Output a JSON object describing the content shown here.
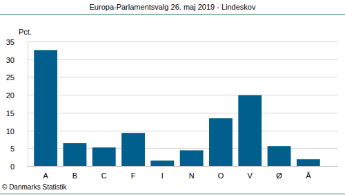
{
  "chart_data": {
    "type": "bar",
    "title": "Europa-Parlamentsvalg 26. maj 2019 - Lindeskov",
    "y_label": "Pct.",
    "source": "© Danmarks Statistik",
    "categories": [
      "A",
      "B",
      "C",
      "F",
      "I",
      "N",
      "O",
      "V",
      "Ø",
      "Å"
    ],
    "values": [
      32.6,
      6.4,
      5.2,
      9.3,
      1.5,
      4.4,
      13.4,
      19.9,
      5.6,
      1.9
    ],
    "color": "#005f8c",
    "ylim": [
      0,
      35
    ],
    "yticks": [
      0,
      5,
      10,
      15,
      20,
      25,
      30,
      35
    ],
    "grid": true
  }
}
